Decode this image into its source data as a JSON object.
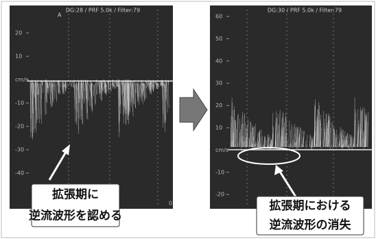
{
  "panels": [
    {
      "header": "DG:28 /  PRF 5.0k  / Filter:79",
      "marker": "A",
      "scale_labels": [
        "20",
        "10",
        "cm/s",
        "-10",
        "-20",
        "-30",
        "-40"
      ],
      "corner_label": "0",
      "caption": [
        "拡張期に",
        "逆流波形を認める"
      ]
    },
    {
      "header": "DG:30 /  PRF 5.0k  / Filter:79",
      "scale_labels": [
        "60",
        "50",
        "40",
        "30",
        "20",
        "10",
        "cm/s",
        "-10",
        "-20"
      ],
      "caption": [
        "拡張期における",
        "逆流波形の消失"
      ]
    }
  ]
}
